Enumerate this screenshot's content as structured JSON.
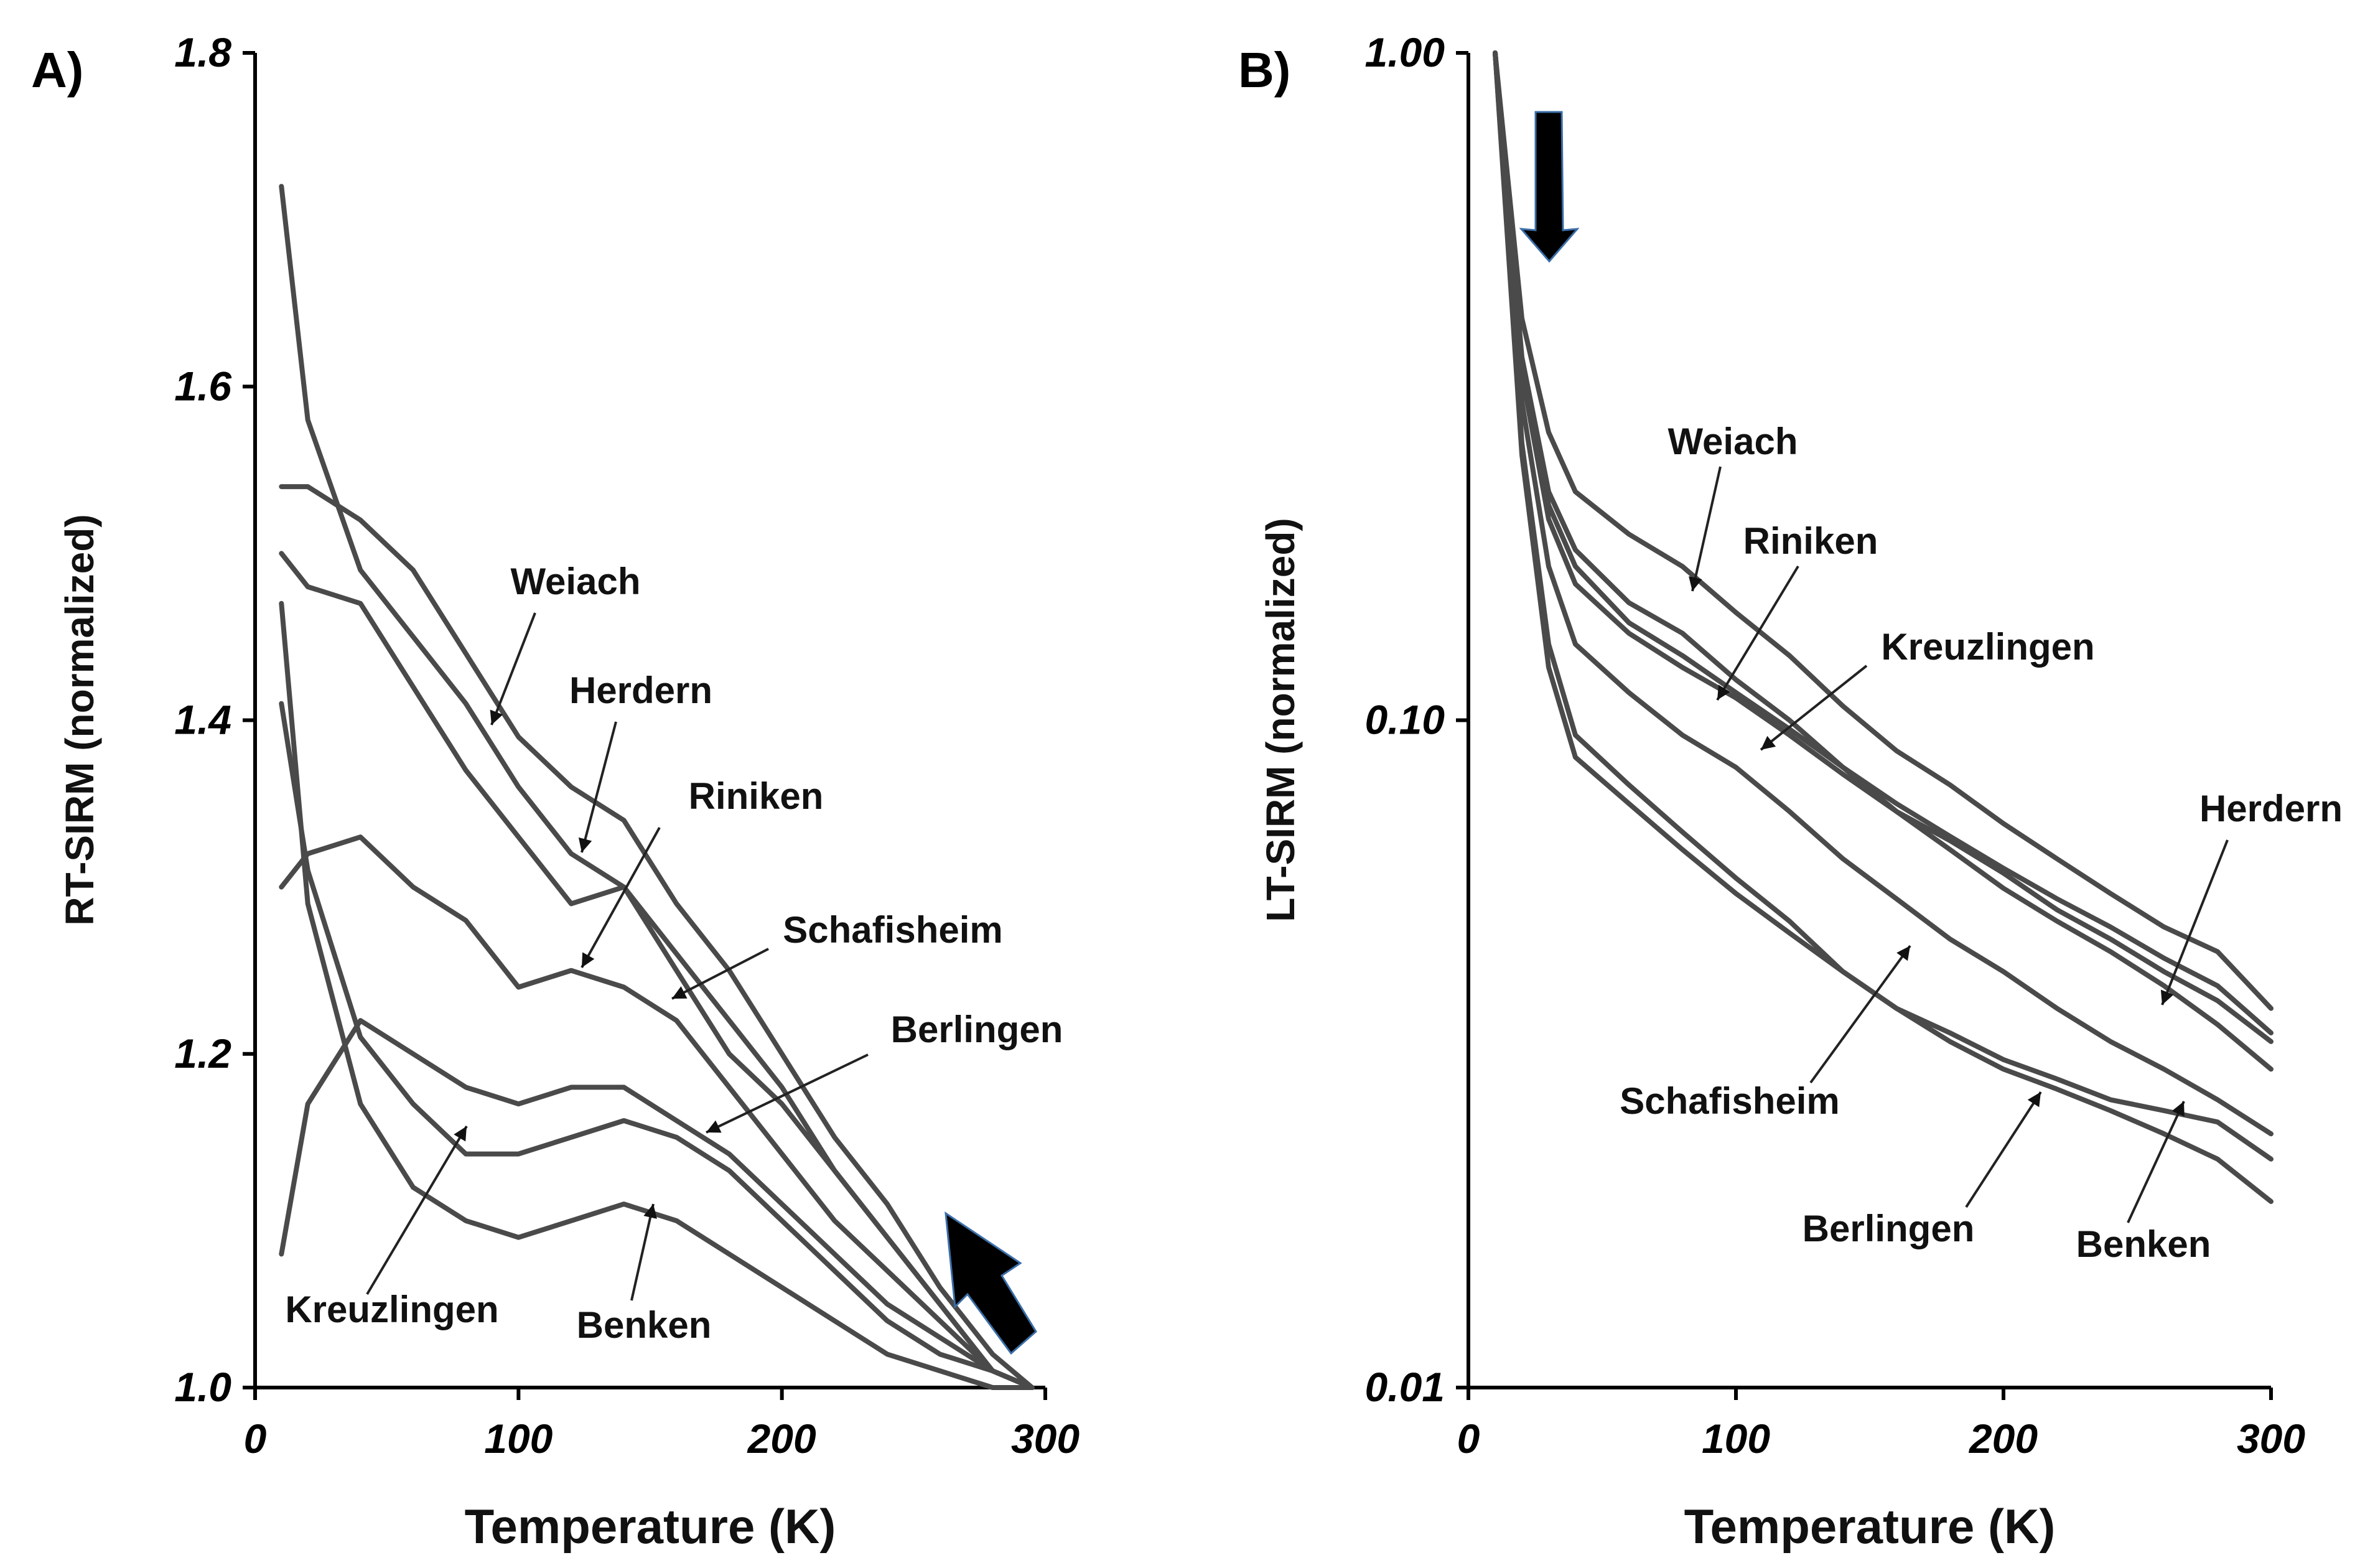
{
  "chart_data": [
    {
      "type": "line",
      "panel_label": "A)",
      "title": "",
      "xlabel": "Temperature (K)",
      "ylabel": "RT-SIRM (normalized)",
      "xlim": [
        0,
        300
      ],
      "ylim": [
        1.0,
        1.8
      ],
      "xticks": [
        "0",
        "100",
        "200",
        "300"
      ],
      "yticks": [
        "1.0",
        "1.2",
        "1.4",
        "1.6",
        "1.8"
      ],
      "grid": false,
      "yscale": "linear",
      "series": [
        {
          "name": "Weiach",
          "x": [
            10,
            20,
            40,
            60,
            80,
            100,
            120,
            140,
            160,
            180,
            200,
            220,
            240,
            260,
            280,
            295
          ],
          "y": [
            1.54,
            1.54,
            1.52,
            1.49,
            1.44,
            1.39,
            1.36,
            1.34,
            1.29,
            1.25,
            1.2,
            1.15,
            1.11,
            1.06,
            1.02,
            1.0
          ]
        },
        {
          "name": "Herdern",
          "x": [
            10,
            20,
            40,
            60,
            80,
            100,
            120,
            140,
            160,
            180,
            200,
            220,
            240,
            260,
            280,
            295
          ],
          "y": [
            1.72,
            1.58,
            1.49,
            1.45,
            1.41,
            1.36,
            1.32,
            1.3,
            1.26,
            1.22,
            1.18,
            1.13,
            1.09,
            1.05,
            1.01,
            1.0
          ]
        },
        {
          "name": "Riniken",
          "x": [
            10,
            20,
            40,
            60,
            80,
            100,
            120,
            140,
            160,
            180,
            200,
            220,
            240,
            260,
            280,
            295
          ],
          "y": [
            1.5,
            1.48,
            1.47,
            1.42,
            1.37,
            1.33,
            1.29,
            1.3,
            1.25,
            1.2,
            1.17,
            1.13,
            1.09,
            1.05,
            1.01,
            1.0
          ]
        },
        {
          "name": "Schafisheim",
          "x": [
            10,
            20,
            40,
            60,
            80,
            100,
            120,
            140,
            160,
            180,
            200,
            220,
            240,
            260,
            280,
            295
          ],
          "y": [
            1.3,
            1.32,
            1.33,
            1.3,
            1.28,
            1.24,
            1.25,
            1.24,
            1.22,
            1.18,
            1.14,
            1.1,
            1.07,
            1.04,
            1.01,
            1.0
          ]
        },
        {
          "name": "Berlingen",
          "x": [
            10,
            20,
            40,
            60,
            80,
            100,
            120,
            140,
            160,
            180,
            200,
            220,
            240,
            260,
            280,
            295
          ],
          "y": [
            1.08,
            1.17,
            1.22,
            1.2,
            1.18,
            1.17,
            1.18,
            1.18,
            1.16,
            1.14,
            1.11,
            1.08,
            1.05,
            1.03,
            1.01,
            1.0
          ]
        },
        {
          "name": "Kreuzlingen",
          "x": [
            10,
            20,
            40,
            60,
            80,
            100,
            120,
            140,
            160,
            180,
            200,
            220,
            240,
            260,
            280,
            295
          ],
          "y": [
            1.41,
            1.31,
            1.21,
            1.17,
            1.14,
            1.14,
            1.15,
            1.16,
            1.15,
            1.13,
            1.1,
            1.07,
            1.04,
            1.02,
            1.01,
            1.0
          ]
        },
        {
          "name": "Benken",
          "x": [
            10,
            20,
            40,
            60,
            80,
            100,
            120,
            140,
            160,
            180,
            200,
            220,
            240,
            260,
            280,
            295
          ],
          "y": [
            1.47,
            1.29,
            1.17,
            1.12,
            1.1,
            1.09,
            1.1,
            1.11,
            1.1,
            1.08,
            1.06,
            1.04,
            1.02,
            1.01,
            1.0,
            1.0
          ]
        }
      ],
      "annotations": [
        "Weiach",
        "Herdern",
        "Riniken",
        "Schafisheim",
        "Berlingen",
        "Kreuzlingen",
        "Benken"
      ]
    },
    {
      "type": "line",
      "panel_label": "B)",
      "title": "",
      "xlabel": "Temperature (K)",
      "ylabel": "LT-SIRM (normalized)",
      "xlim": [
        0,
        300
      ],
      "ylim": [
        0.01,
        1.0
      ],
      "xticks": [
        "0",
        "100",
        "200",
        "300"
      ],
      "yticks": [
        "0.01",
        "0.10",
        "1.00"
      ],
      "grid": false,
      "yscale": "log",
      "series": [
        {
          "name": "Weiach",
          "x": [
            10,
            20,
            30,
            40,
            60,
            80,
            100,
            120,
            140,
            160,
            180,
            200,
            220,
            240,
            260,
            280,
            300
          ],
          "y": [
            1.0,
            0.4,
            0.27,
            0.22,
            0.19,
            0.17,
            0.145,
            0.125,
            0.105,
            0.09,
            0.08,
            0.07,
            0.062,
            0.055,
            0.049,
            0.045,
            0.037
          ]
        },
        {
          "name": "Herdern",
          "x": [
            10,
            20,
            30,
            40,
            60,
            80,
            100,
            120,
            140,
            160,
            180,
            200,
            220,
            240,
            260,
            280,
            300
          ],
          "y": [
            1.0,
            0.35,
            0.22,
            0.18,
            0.15,
            0.135,
            0.115,
            0.1,
            0.085,
            0.073,
            0.064,
            0.056,
            0.05,
            0.045,
            0.04,
            0.035,
            0.03
          ]
        },
        {
          "name": "Riniken",
          "x": [
            10,
            20,
            30,
            40,
            60,
            80,
            100,
            120,
            140,
            160,
            180,
            200,
            220,
            240,
            260,
            280,
            300
          ],
          "y": [
            1.0,
            0.34,
            0.21,
            0.17,
            0.14,
            0.125,
            0.11,
            0.097,
            0.085,
            0.075,
            0.067,
            0.06,
            0.054,
            0.049,
            0.044,
            0.04,
            0.034
          ]
        },
        {
          "name": "Kreuzlingen",
          "x": [
            10,
            20,
            30,
            40,
            60,
            80,
            100,
            120,
            140,
            160,
            180,
            200,
            220,
            240,
            260,
            280,
            300
          ],
          "y": [
            1.0,
            0.33,
            0.2,
            0.16,
            0.135,
            0.12,
            0.108,
            0.095,
            0.083,
            0.073,
            0.066,
            0.059,
            0.052,
            0.047,
            0.042,
            0.038,
            0.033
          ]
        },
        {
          "name": "Schafisheim",
          "x": [
            10,
            20,
            30,
            40,
            60,
            80,
            100,
            120,
            140,
            160,
            180,
            200,
            220,
            240,
            260,
            280,
            300
          ],
          "y": [
            1.0,
            0.3,
            0.17,
            0.13,
            0.11,
            0.095,
            0.085,
            0.073,
            0.062,
            0.054,
            0.047,
            0.042,
            0.037,
            0.033,
            0.03,
            0.027,
            0.024
          ]
        },
        {
          "name": "Berlingen",
          "x": [
            10,
            20,
            30,
            40,
            60,
            80,
            100,
            120,
            140,
            160,
            180,
            200,
            220,
            240,
            260,
            280,
            300
          ],
          "y": [
            1.0,
            0.26,
            0.13,
            0.095,
            0.08,
            0.068,
            0.058,
            0.05,
            0.042,
            0.037,
            0.033,
            0.03,
            0.028,
            0.026,
            0.024,
            0.022,
            0.019
          ]
        },
        {
          "name": "Benken",
          "x": [
            10,
            20,
            30,
            40,
            60,
            80,
            100,
            120,
            140,
            160,
            180,
            200,
            220,
            240,
            260,
            280,
            300
          ],
          "y": [
            1.0,
            0.25,
            0.12,
            0.088,
            0.075,
            0.064,
            0.055,
            0.048,
            0.042,
            0.037,
            0.034,
            0.031,
            0.029,
            0.027,
            0.026,
            0.025,
            0.022
          ]
        }
      ],
      "annotations": [
        "Weiach",
        "Riniken",
        "Kreuzlingen",
        "Herdern",
        "Schafisheim",
        "Berlingen",
        "Benken"
      ]
    }
  ]
}
